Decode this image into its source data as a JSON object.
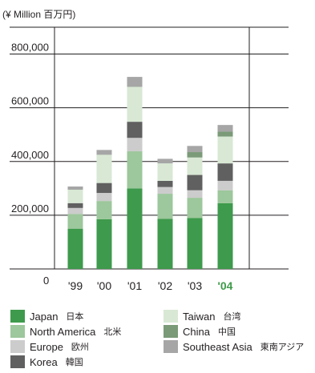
{
  "chart_data": {
    "type": "bar",
    "stacked": true,
    "unit_label": "(¥ Million  百万円)",
    "categories": [
      "'99",
      "'00",
      "'01",
      "'02",
      "'03",
      "'04"
    ],
    "highlight_category": "'04",
    "highlight_color": "#3f9a4a",
    "ylim": [
      0,
      900000
    ],
    "yticks": [
      0,
      200000,
      400000,
      600000,
      800000
    ],
    "ytick_labels": [
      "0",
      "200,000",
      "400,000",
      "600,000",
      "800,000"
    ],
    "grid": true,
    "series": [
      {
        "name": "Japan",
        "name_local": "日本",
        "color": "#3e9a4c",
        "values": [
          150000,
          185000,
          300000,
          187000,
          190000,
          245000
        ]
      },
      {
        "name": "North America",
        "name_local": "北米",
        "color": "#9dc79c",
        "values": [
          55000,
          68000,
          138000,
          93000,
          75000,
          48000
        ]
      },
      {
        "name": "Europe",
        "name_local": "欧州",
        "color": "#cccccc",
        "values": [
          22000,
          30000,
          50000,
          25000,
          28000,
          35000
        ]
      },
      {
        "name": "Korea",
        "name_local": "韓国",
        "color": "#606060",
        "values": [
          18000,
          37000,
          60000,
          23000,
          57000,
          65000
        ]
      },
      {
        "name": "Taiwan",
        "name_local": "台湾",
        "color": "#d8e8d4",
        "values": [
          50000,
          105000,
          130000,
          65000,
          65000,
          100000
        ]
      },
      {
        "name": "China",
        "name_local": "中国",
        "color": "#7a9a78",
        "values": [
          0,
          0,
          0,
          0,
          20000,
          18000
        ]
      },
      {
        "name": "Southeast Asia",
        "name_local": "東南アジア",
        "color": "#a6a6a6",
        "values": [
          12000,
          18000,
          37000,
          17000,
          23000,
          25000
        ]
      }
    ],
    "legend_position": "bottom"
  }
}
